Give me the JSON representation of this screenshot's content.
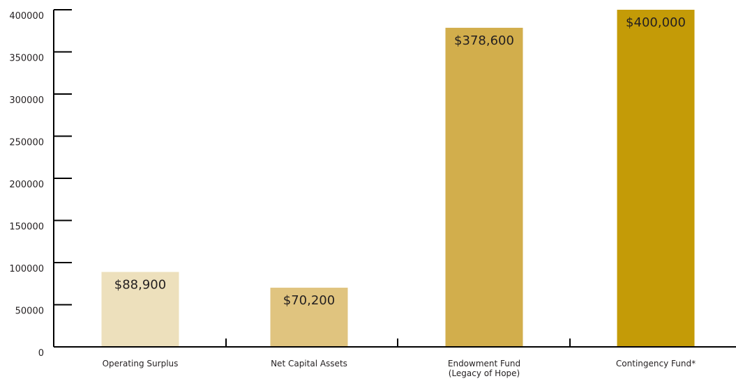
{
  "chart_data": {
    "type": "bar",
    "categories": [
      "Operating Surplus",
      "Net Capital Assets",
      "Endowment Fund",
      "Contingency Fund*"
    ],
    "category_sublabels": [
      "",
      "",
      "(Legacy of Hope)",
      ""
    ],
    "values": [
      88900,
      70200,
      378600,
      400000
    ],
    "data_labels": [
      "$88,900",
      "$70,200",
      "$378,600",
      "$400,000"
    ],
    "bar_colors": [
      "#ede0bc",
      "#e0c47f",
      "#d2ae4c",
      "#c49b07"
    ],
    "y_ticks": [
      0,
      50000,
      100000,
      150000,
      200000,
      250000,
      300000,
      350000,
      400000
    ],
    "y_tick_labels": [
      "0",
      "50000",
      "100000",
      "150000",
      "200000",
      "250000",
      "300000",
      "350000",
      "400000"
    ],
    "ylim": [
      0,
      400000
    ],
    "title": "",
    "xlabel": "",
    "ylabel": "",
    "grid": false,
    "legend": "none",
    "axis_color": "#000000",
    "text_color": "#231f20"
  }
}
